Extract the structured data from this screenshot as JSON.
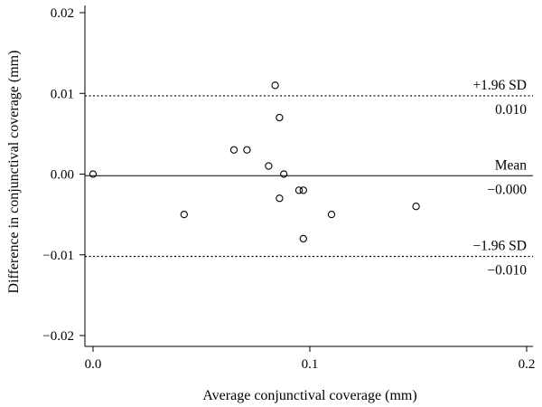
{
  "chart_data": {
    "type": "scatter",
    "title": "",
    "xlabel": "Average conjunctival coverage (mm)",
    "ylabel": "Difference in conjunctival coverage (mm)",
    "xlim": [
      0.0,
      0.2
    ],
    "ylim": [
      -0.02,
      0.02
    ],
    "x_ticks": [
      0.0,
      0.1,
      0.2
    ],
    "x_tick_labels": [
      "0.0",
      "0.1",
      "0.2"
    ],
    "y_ticks": [
      -0.02,
      -0.01,
      0.0,
      0.01,
      0.02
    ],
    "y_tick_labels": [
      "−0.02",
      "−0.01",
      "0.00",
      "0.01",
      "0.02"
    ],
    "grid": false,
    "points": [
      {
        "x": 0.0,
        "y": 0.0
      },
      {
        "x": 0.042,
        "y": -0.005
      },
      {
        "x": 0.065,
        "y": 0.003
      },
      {
        "x": 0.071,
        "y": 0.003
      },
      {
        "x": 0.081,
        "y": 0.001
      },
      {
        "x": 0.084,
        "y": 0.011
      },
      {
        "x": 0.086,
        "y": 0.007
      },
      {
        "x": 0.086,
        "y": -0.003
      },
      {
        "x": 0.088,
        "y": 0.0
      },
      {
        "x": 0.095,
        "y": -0.002
      },
      {
        "x": 0.097,
        "y": -0.002
      },
      {
        "x": 0.097,
        "y": -0.008
      },
      {
        "x": 0.11,
        "y": -0.005
      },
      {
        "x": 0.149,
        "y": -0.004
      }
    ],
    "reference_lines": [
      {
        "label": "+1.96 SD",
        "value_label": "0.010",
        "y": 0.0097,
        "style": "dotted"
      },
      {
        "label": "Mean",
        "value_label": "−0.000",
        "y": -0.0002,
        "style": "solid"
      },
      {
        "label": "−1.96 SD",
        "value_label": "−0.010",
        "y": -0.0102,
        "style": "dotted"
      }
    ]
  }
}
